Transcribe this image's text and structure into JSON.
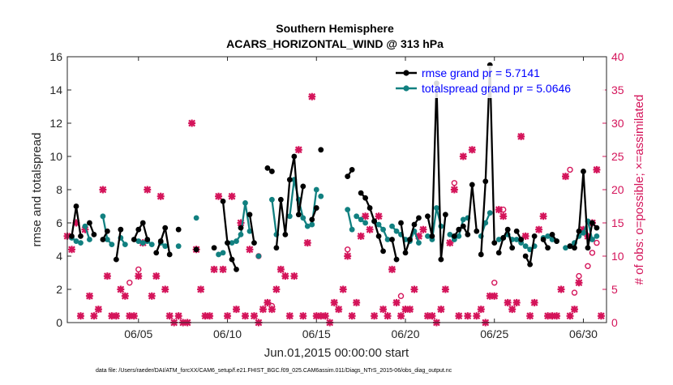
{
  "chart_data": {
    "type": "line",
    "title": "Southern Hemisphere",
    "subtitle": "ACARS_HORIZONTAL_WIND @ 313 hPa",
    "xlabel": "Jun.01,2015 00:00:00 start",
    "ylabel_left": "rmse and totalspread",
    "ylabel_right": "# of obs: o=possible; ×=assimilated",
    "footer": "data file: /Users/raeder/DAI/ATM_forcXX/CAM6_setup/f.e21.FHIST_BGC.f09_025.CAM6assim.011/Diags_NTrS_2015-06/obs_diag_output.nc",
    "xlim": [
      1,
      31.3
    ],
    "ylim_left": [
      0,
      16
    ],
    "ylim_right": [
      0,
      40
    ],
    "x_ticks": [
      {
        "value": 5,
        "label": "06/05"
      },
      {
        "value": 10,
        "label": "06/10"
      },
      {
        "value": 15,
        "label": "06/15"
      },
      {
        "value": 20,
        "label": "06/20"
      },
      {
        "value": 25,
        "label": "06/25"
      },
      {
        "value": 30,
        "label": "06/30"
      }
    ],
    "y_ticks_left": [
      {
        "value": 0,
        "label": "0"
      },
      {
        "value": 2,
        "label": "2"
      },
      {
        "value": 4,
        "label": "4"
      },
      {
        "value": 6,
        "label": "6"
      },
      {
        "value": 8,
        "label": "8"
      },
      {
        "value": 10,
        "label": "10"
      },
      {
        "value": 12,
        "label": "12"
      },
      {
        "value": 14,
        "label": "14"
      },
      {
        "value": 16,
        "label": "16"
      }
    ],
    "y_ticks_right": [
      {
        "value": 0,
        "label": "0"
      },
      {
        "value": 5,
        "label": "5"
      },
      {
        "value": 10,
        "label": "10"
      },
      {
        "value": 15,
        "label": "15"
      },
      {
        "value": 20,
        "label": "20"
      },
      {
        "value": 25,
        "label": "25"
      },
      {
        "value": 30,
        "label": "30"
      },
      {
        "value": 35,
        "label": "35"
      },
      {
        "value": 40,
        "label": "40"
      }
    ],
    "legend": {
      "position": "top-right",
      "entries": [
        {
          "label": "rmse grand pr = 5.7141",
          "color": "#000000"
        },
        {
          "label": "totalspread grand pr = 5.0646",
          "color": "#118080"
        }
      ]
    },
    "colors": {
      "rmse": "#000000",
      "spread": "#118080",
      "obs": "#d4145a"
    },
    "rmse_segments": [
      [
        [
          1.25,
          5.2
        ],
        [
          1.5,
          7.0
        ],
        [
          1.75,
          5.2
        ]
      ],
      [
        [
          2.25,
          6.0
        ],
        [
          2.5,
          5.3
        ]
      ],
      [
        [
          3.0,
          5.0
        ],
        [
          3.25,
          5.5
        ]
      ],
      [
        [
          3.75,
          3.8
        ],
        [
          4.0,
          5.6
        ]
      ],
      [
        [
          4.75,
          5.0
        ],
        [
          5.0,
          5.6
        ],
        [
          5.25,
          6.0
        ],
        [
          5.5,
          5.0
        ]
      ],
      [
        [
          6.0,
          4.2
        ],
        [
          6.25,
          4.9
        ],
        [
          6.5,
          5.7
        ],
        [
          6.75,
          4.1
        ]
      ],
      [
        [
          7.25,
          5.6
        ]
      ],
      [
        [
          8.25,
          4.4
        ]
      ],
      [
        [
          9.25,
          4.5
        ]
      ],
      [
        [
          9.75,
          7.3
        ],
        [
          10.0,
          4.8
        ],
        [
          10.25,
          3.8
        ],
        [
          10.5,
          3.2
        ]
      ],
      [
        [
          10.75,
          5.7
        ]
      ],
      [
        [
          11.25,
          6.5
        ],
        [
          11.5,
          4.8
        ]
      ],
      [
        [
          12.25,
          9.3
        ],
        [
          12.5,
          9.1
        ]
      ],
      [
        [
          12.75,
          4.5
        ],
        [
          13.0,
          7.4
        ],
        [
          13.25,
          5.3
        ],
        [
          13.5,
          8.6
        ],
        [
          13.75,
          10.0
        ],
        [
          14.0,
          6.5
        ],
        [
          14.25,
          8.2
        ]
      ],
      [
        [
          14.75,
          6.2
        ],
        [
          15.0,
          6.9
        ]
      ],
      [
        [
          15.25,
          10.4
        ]
      ],
      [
        [
          16.75,
          8.8
        ],
        [
          17.0,
          9.2
        ]
      ],
      [
        [
          17.5,
          7.8
        ],
        [
          17.75,
          7.5
        ],
        [
          18.0,
          6.9
        ],
        [
          18.25,
          6.1
        ],
        [
          18.5,
          5.2
        ],
        [
          18.75,
          4.3
        ]
      ],
      [
        [
          19.25,
          5.0
        ],
        [
          19.5,
          3.8
        ]
      ],
      [
        [
          19.75,
          6.0
        ],
        [
          20.0,
          4.2
        ],
        [
          20.25,
          5.0
        ],
        [
          20.5,
          5.9
        ],
        [
          20.75,
          6.3
        ]
      ],
      [
        [
          21.25,
          6.4
        ],
        [
          21.5,
          5.2
        ],
        [
          21.75,
          14.4
        ],
        [
          22.0,
          3.8
        ],
        [
          22.25,
          6.5
        ]
      ],
      [
        [
          22.75,
          5.2
        ],
        [
          23.0,
          5.6
        ],
        [
          23.25,
          5.8
        ],
        [
          23.5,
          5.3
        ],
        [
          23.75,
          8.3
        ],
        [
          24.0,
          5.5
        ]
      ],
      [
        [
          24.25,
          4.1
        ],
        [
          24.5,
          8.5
        ],
        [
          24.75,
          15.5
        ],
        [
          25.0,
          4.8
        ]
      ],
      [
        [
          25.25,
          4.2
        ],
        [
          25.5,
          5.1
        ],
        [
          25.75,
          5.6
        ],
        [
          26.0,
          4.5
        ]
      ],
      [
        [
          26.25,
          5.5
        ],
        [
          26.5,
          5.0
        ]
      ],
      [
        [
          26.75,
          4.0
        ],
        [
          27.0,
          3.5
        ],
        [
          27.25,
          5.2
        ]
      ],
      [
        [
          27.75,
          5.0
        ],
        [
          28.0,
          4.5
        ]
      ],
      [
        [
          28.25,
          5.3
        ],
        [
          28.5,
          4.9
        ]
      ],
      [
        [
          29.25,
          4.6
        ],
        [
          29.5,
          4.5
        ],
        [
          29.75,
          5.5
        ],
        [
          30.0,
          9.1
        ],
        [
          30.25,
          4.5
        ],
        [
          30.5,
          6.0
        ],
        [
          30.75,
          5.7
        ]
      ]
    ],
    "spread_segments": [
      [
        [
          1.25,
          5.1
        ],
        [
          1.5,
          4.9
        ],
        [
          1.75,
          4.8
        ]
      ],
      [
        [
          2.0,
          5.8
        ],
        [
          2.25,
          5.0
        ]
      ],
      [
        [
          3.0,
          6.4
        ],
        [
          3.25,
          5.0
        ],
        [
          3.5,
          4.7
        ]
      ],
      [
        [
          4.0,
          5.1
        ],
        [
          4.25,
          4.7
        ]
      ],
      [
        [
          5.0,
          4.9
        ],
        [
          5.25,
          4.8
        ],
        [
          5.5,
          4.9
        ],
        [
          5.75,
          4.7
        ]
      ],
      [
        [
          6.25,
          4.8
        ],
        [
          6.5,
          4.6
        ]
      ],
      [
        [
          7.25,
          4.6
        ]
      ],
      [
        [
          8.25,
          6.3
        ]
      ],
      [
        [
          9.5,
          4.1
        ],
        [
          9.75,
          4.2
        ]
      ],
      [
        [
          10.0,
          4.8
        ],
        [
          10.25,
          4.8
        ]
      ],
      [
        [
          10.5,
          4.9
        ],
        [
          10.75,
          5.3
        ],
        [
          11.0,
          7.2
        ],
        [
          11.25,
          5.5
        ]
      ],
      [
        [
          11.75,
          4.0
        ]
      ],
      [
        [
          12.5,
          7.4
        ],
        [
          12.75,
          5.3
        ]
      ],
      [
        [
          13.5,
          6.4
        ],
        [
          13.75,
          8.6
        ],
        [
          14.0,
          7.4
        ],
        [
          14.25,
          6.3
        ],
        [
          14.5,
          5.8
        ],
        [
          14.75,
          5.9
        ],
        [
          15.0,
          8.0
        ]
      ],
      [
        [
          15.25,
          7.6
        ]
      ],
      [
        [
          16.75,
          6.8
        ],
        [
          17.0,
          5.6
        ]
      ],
      [
        [
          17.25,
          6.4
        ],
        [
          17.5,
          6.2
        ],
        [
          17.75,
          6.0
        ]
      ],
      [
        [
          18.25,
          6.1
        ],
        [
          18.5,
          5.9
        ],
        [
          18.75,
          5.6
        ],
        [
          19.0,
          5.0
        ]
      ],
      [
        [
          19.25,
          5.8
        ],
        [
          19.5,
          5.5
        ],
        [
          19.75,
          5.3
        ],
        [
          20.0,
          5.0
        ],
        [
          20.25,
          4.9
        ],
        [
          20.5,
          5.5
        ],
        [
          20.75,
          4.8
        ]
      ],
      [
        [
          21.25,
          5.2
        ],
        [
          21.5,
          5.0
        ],
        [
          21.75,
          6.9
        ],
        [
          22.0,
          5.8
        ]
      ],
      [
        [
          22.5,
          5.3
        ],
        [
          22.75,
          5.0
        ],
        [
          23.0,
          5.2
        ],
        [
          23.25,
          6.2
        ],
        [
          23.5,
          6.3
        ]
      ],
      [
        [
          24.25,
          5.2
        ],
        [
          24.5,
          6.0
        ],
        [
          24.75,
          6.6
        ]
      ],
      [
        [
          25.25,
          5.0
        ],
        [
          25.5,
          5.1
        ],
        [
          25.75,
          5.3
        ],
        [
          26.0,
          5.0
        ]
      ],
      [
        [
          26.25,
          5.0
        ],
        [
          26.5,
          4.8
        ]
      ],
      [
        [
          26.75,
          4.6
        ],
        [
          27.0,
          4.4
        ],
        [
          27.25,
          4.6
        ]
      ],
      [
        [
          27.75,
          5.1
        ],
        [
          28.0,
          5.2
        ],
        [
          28.25,
          5.0
        ],
        [
          28.5,
          4.9
        ]
      ],
      [
        [
          29.0,
          4.5
        ],
        [
          29.25,
          4.6
        ],
        [
          29.5,
          4.8
        ],
        [
          29.75,
          5.2
        ],
        [
          30.0,
          5.4
        ],
        [
          30.25,
          6.1
        ],
        [
          30.5,
          5.0
        ],
        [
          30.75,
          5.2
        ]
      ]
    ],
    "obs_possible": [
      [
        11.75,
        10
      ],
      [
        12.5,
        2.5
      ],
      [
        16.75,
        11
      ],
      [
        19.75,
        4
      ],
      [
        22.75,
        21
      ],
      [
        25.0,
        6
      ],
      [
        25.5,
        17
      ],
      [
        29.25,
        23
      ],
      [
        29.5,
        4.5
      ],
      [
        29.75,
        7
      ],
      [
        30.25,
        8.5
      ],
      [
        30.5,
        10.5
      ],
      [
        30.75,
        12
      ],
      [
        5.0,
        8
      ],
      [
        4.5,
        6
      ]
    ],
    "obs_assimilated": [
      [
        1.0,
        13
      ],
      [
        1.25,
        11
      ],
      [
        1.5,
        15
      ],
      [
        1.75,
        1
      ],
      [
        2.0,
        14
      ],
      [
        2.25,
        4
      ],
      [
        2.5,
        1
      ],
      [
        2.75,
        2
      ],
      [
        3.0,
        20
      ],
      [
        3.25,
        7
      ],
      [
        3.5,
        1
      ],
      [
        3.75,
        1
      ],
      [
        4.0,
        5
      ],
      [
        4.25,
        4
      ],
      [
        4.5,
        1
      ],
      [
        4.75,
        1
      ],
      [
        5.0,
        7
      ],
      [
        5.25,
        12
      ],
      [
        5.5,
        20
      ],
      [
        5.75,
        4
      ],
      [
        6.0,
        7
      ],
      [
        6.25,
        19
      ],
      [
        6.5,
        5
      ],
      [
        6.75,
        1
      ],
      [
        7.0,
        0
      ],
      [
        7.25,
        1
      ],
      [
        7.5,
        0
      ],
      [
        7.75,
        0
      ],
      [
        8.0,
        30
      ],
      [
        8.25,
        11
      ],
      [
        8.5,
        5
      ],
      [
        8.75,
        1
      ],
      [
        9.0,
        1
      ],
      [
        9.25,
        8
      ],
      [
        9.5,
        19
      ],
      [
        9.75,
        8
      ],
      [
        10.0,
        1
      ],
      [
        10.25,
        19
      ],
      [
        10.5,
        2
      ],
      [
        10.75,
        15
      ],
      [
        11.0,
        1
      ],
      [
        11.25,
        11
      ],
      [
        11.5,
        1
      ],
      [
        11.75,
        0
      ],
      [
        12.0,
        2
      ],
      [
        12.25,
        3
      ],
      [
        12.5,
        2
      ],
      [
        12.75,
        5
      ],
      [
        13.0,
        8
      ],
      [
        13.25,
        7
      ],
      [
        13.5,
        1
      ],
      [
        13.75,
        7
      ],
      [
        14.0,
        26
      ],
      [
        14.25,
        1
      ],
      [
        14.5,
        12
      ],
      [
        14.75,
        34
      ],
      [
        15.0,
        1
      ],
      [
        15.25,
        1
      ],
      [
        15.5,
        1
      ],
      [
        15.75,
        0
      ],
      [
        16.0,
        3
      ],
      [
        16.25,
        2
      ],
      [
        16.5,
        5
      ],
      [
        16.75,
        10
      ],
      [
        17.0,
        1
      ],
      [
        17.25,
        3
      ],
      [
        17.5,
        13
      ],
      [
        17.75,
        16
      ],
      [
        18.0,
        14
      ],
      [
        18.25,
        1
      ],
      [
        18.5,
        16
      ],
      [
        18.75,
        2
      ],
      [
        19.0,
        1
      ],
      [
        19.25,
        8
      ],
      [
        19.5,
        3
      ],
      [
        19.75,
        1
      ],
      [
        20.0,
        2
      ],
      [
        20.25,
        2
      ],
      [
        20.5,
        5
      ],
      [
        20.75,
        13
      ],
      [
        21.0,
        14
      ],
      [
        21.25,
        1
      ],
      [
        21.5,
        1
      ],
      [
        21.75,
        0
      ],
      [
        22.0,
        2
      ],
      [
        22.25,
        5
      ],
      [
        22.5,
        12
      ],
      [
        22.75,
        20
      ],
      [
        23.0,
        1
      ],
      [
        23.25,
        25
      ],
      [
        23.5,
        1
      ],
      [
        23.75,
        26
      ],
      [
        24.0,
        1
      ],
      [
        24.25,
        2
      ],
      [
        24.5,
        0
      ],
      [
        24.75,
        4
      ],
      [
        25.0,
        4
      ],
      [
        25.25,
        17
      ],
      [
        25.5,
        16
      ],
      [
        25.75,
        3
      ],
      [
        26.0,
        2
      ],
      [
        26.25,
        3
      ],
      [
        26.5,
        28
      ],
      [
        26.75,
        13
      ],
      [
        27.0,
        1
      ],
      [
        27.25,
        3
      ],
      [
        27.5,
        14
      ],
      [
        27.75,
        16
      ],
      [
        28.0,
        1
      ],
      [
        28.25,
        1
      ],
      [
        28.5,
        1
      ],
      [
        28.75,
        5
      ],
      [
        29.0,
        22
      ],
      [
        29.25,
        1
      ],
      [
        29.5,
        2
      ],
      [
        29.75,
        6
      ],
      [
        30.0,
        14
      ],
      [
        30.25,
        13
      ],
      [
        30.5,
        15
      ],
      [
        30.75,
        23
      ],
      [
        31.0,
        1
      ]
    ]
  }
}
